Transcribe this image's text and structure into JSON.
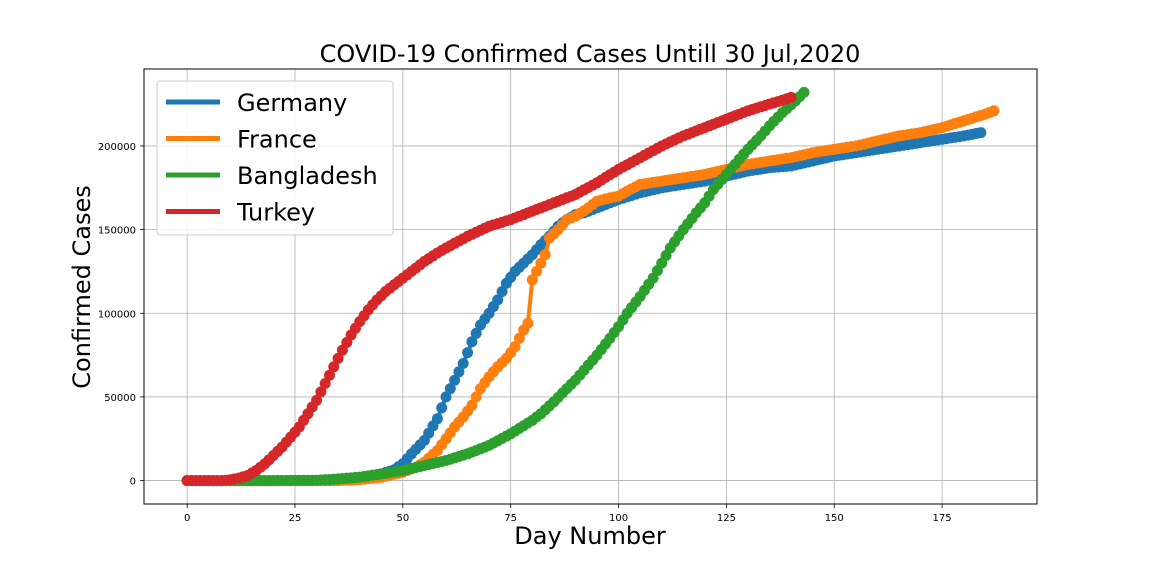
{
  "chart_data": {
    "type": "line",
    "title": "COVID-19 Confirmed Cases Untill 30 Jul,2020",
    "xlabel": "Day Number",
    "ylabel": "Confirmed Cases",
    "xlim": [
      -10,
      197
    ],
    "ylim": [
      -14000,
      246000
    ],
    "x_ticks": [
      0,
      25,
      50,
      75,
      100,
      125,
      150,
      175
    ],
    "y_ticks": [
      0,
      50000,
      100000,
      150000,
      200000
    ],
    "grid": true,
    "legend_position": "top-left",
    "series": [
      {
        "name": "Germany",
        "color": "#1f77b4",
        "points": [
          [
            0,
            0
          ],
          [
            10,
            0
          ],
          [
            20,
            0
          ],
          [
            30,
            0
          ],
          [
            40,
            2000
          ],
          [
            45,
            4000
          ],
          [
            48,
            6500
          ],
          [
            50,
            10000
          ],
          [
            52,
            16000
          ],
          [
            55,
            24000
          ],
          [
            58,
            37000
          ],
          [
            60,
            50000
          ],
          [
            62,
            60000
          ],
          [
            64,
            70000
          ],
          [
            66,
            83000
          ],
          [
            68,
            93000
          ],
          [
            70,
            100000
          ],
          [
            72,
            108000
          ],
          [
            74,
            118000
          ],
          [
            76,
            125000
          ],
          [
            78,
            130000
          ],
          [
            80,
            135000
          ],
          [
            82,
            141000
          ],
          [
            84,
            146000
          ],
          [
            86,
            152000
          ],
          [
            88,
            156000
          ],
          [
            90,
            159000
          ],
          [
            92,
            160000
          ],
          [
            95,
            163000
          ],
          [
            100,
            168000
          ],
          [
            105,
            172000
          ],
          [
            110,
            175000
          ],
          [
            115,
            177000
          ],
          [
            120,
            179000
          ],
          [
            125,
            182000
          ],
          [
            130,
            185000
          ],
          [
            135,
            187000
          ],
          [
            140,
            188000
          ],
          [
            145,
            191000
          ],
          [
            150,
            194000
          ],
          [
            155,
            196000
          ],
          [
            160,
            198000
          ],
          [
            165,
            200000
          ],
          [
            170,
            202000
          ],
          [
            175,
            204000
          ],
          [
            180,
            206000
          ],
          [
            184,
            208000
          ]
        ]
      },
      {
        "name": "France",
        "color": "#ff7f0e",
        "points": [
          [
            0,
            0
          ],
          [
            10,
            0
          ],
          [
            20,
            0
          ],
          [
            30,
            0
          ],
          [
            35,
            0
          ],
          [
            40,
            500
          ],
          [
            45,
            2000
          ],
          [
            50,
            5000
          ],
          [
            53,
            8000
          ],
          [
            55,
            11000
          ],
          [
            58,
            18000
          ],
          [
            60,
            25000
          ],
          [
            62,
            32000
          ],
          [
            64,
            38000
          ],
          [
            66,
            45000
          ],
          [
            68,
            55000
          ],
          [
            70,
            62000
          ],
          [
            72,
            68000
          ],
          [
            74,
            73000
          ],
          [
            76,
            80000
          ],
          [
            78,
            90000
          ],
          [
            79,
            94000
          ],
          [
            80,
            120000
          ],
          [
            81,
            125000
          ],
          [
            82,
            130000
          ],
          [
            83,
            135000
          ],
          [
            84,
            145000
          ],
          [
            86,
            150000
          ],
          [
            88,
            156000
          ],
          [
            90,
            158000
          ],
          [
            93,
            163000
          ],
          [
            95,
            167000
          ],
          [
            98,
            169000
          ],
          [
            100,
            170000
          ],
          [
            102,
            173000
          ],
          [
            105,
            177000
          ],
          [
            110,
            179000
          ],
          [
            115,
            181000
          ],
          [
            120,
            183000
          ],
          [
            125,
            186000
          ],
          [
            130,
            189000
          ],
          [
            135,
            191000
          ],
          [
            140,
            193000
          ],
          [
            145,
            196000
          ],
          [
            150,
            198000
          ],
          [
            155,
            200000
          ],
          [
            160,
            203000
          ],
          [
            165,
            206000
          ],
          [
            170,
            208000
          ],
          [
            175,
            211000
          ],
          [
            180,
            215000
          ],
          [
            185,
            219000
          ],
          [
            187,
            221000
          ]
        ]
      },
      {
        "name": "Bangladesh",
        "color": "#2ca02c",
        "points": [
          [
            10,
            0
          ],
          [
            20,
            0
          ],
          [
            30,
            200
          ],
          [
            35,
            800
          ],
          [
            40,
            2000
          ],
          [
            45,
            4000
          ],
          [
            50,
            6000
          ],
          [
            55,
            9000
          ],
          [
            60,
            12000
          ],
          [
            65,
            16000
          ],
          [
            70,
            21000
          ],
          [
            75,
            28000
          ],
          [
            80,
            36000
          ],
          [
            82,
            40000
          ],
          [
            85,
            47000
          ],
          [
            88,
            55000
          ],
          [
            90,
            60000
          ],
          [
            92,
            66000
          ],
          [
            95,
            75000
          ],
          [
            98,
            85000
          ],
          [
            100,
            92000
          ],
          [
            102,
            100000
          ],
          [
            105,
            110000
          ],
          [
            108,
            121000
          ],
          [
            110,
            130000
          ],
          [
            112,
            139000
          ],
          [
            115,
            150000
          ],
          [
            118,
            160000
          ],
          [
            120,
            166000
          ],
          [
            122,
            174000
          ],
          [
            125,
            183000
          ],
          [
            128,
            192000
          ],
          [
            130,
            198000
          ],
          [
            133,
            206000
          ],
          [
            135,
            212000
          ],
          [
            138,
            220000
          ],
          [
            141,
            227000
          ],
          [
            143,
            232000
          ]
        ]
      },
      {
        "name": "Turkey",
        "color": "#d62728",
        "points": [
          [
            0,
            0
          ],
          [
            5,
            0
          ],
          [
            8,
            0
          ],
          [
            10,
            500
          ],
          [
            12,
            1500
          ],
          [
            14,
            3000
          ],
          [
            16,
            6000
          ],
          [
            18,
            10000
          ],
          [
            20,
            15000
          ],
          [
            22,
            20000
          ],
          [
            24,
            26000
          ],
          [
            26,
            32000
          ],
          [
            28,
            40000
          ],
          [
            30,
            48000
          ],
          [
            32,
            58000
          ],
          [
            34,
            68000
          ],
          [
            36,
            78000
          ],
          [
            38,
            87000
          ],
          [
            40,
            95000
          ],
          [
            42,
            102000
          ],
          [
            44,
            108000
          ],
          [
            46,
            113000
          ],
          [
            48,
            117000
          ],
          [
            50,
            121000
          ],
          [
            52,
            125000
          ],
          [
            55,
            131000
          ],
          [
            58,
            136000
          ],
          [
            60,
            139000
          ],
          [
            65,
            146000
          ],
          [
            70,
            152000
          ],
          [
            75,
            156000
          ],
          [
            80,
            161000
          ],
          [
            85,
            166000
          ],
          [
            90,
            171000
          ],
          [
            95,
            178000
          ],
          [
            100,
            186000
          ],
          [
            105,
            193000
          ],
          [
            110,
            200000
          ],
          [
            115,
            206000
          ],
          [
            120,
            211000
          ],
          [
            125,
            216000
          ],
          [
            130,
            221000
          ],
          [
            135,
            225000
          ],
          [
            140,
            229000
          ]
        ]
      }
    ]
  }
}
